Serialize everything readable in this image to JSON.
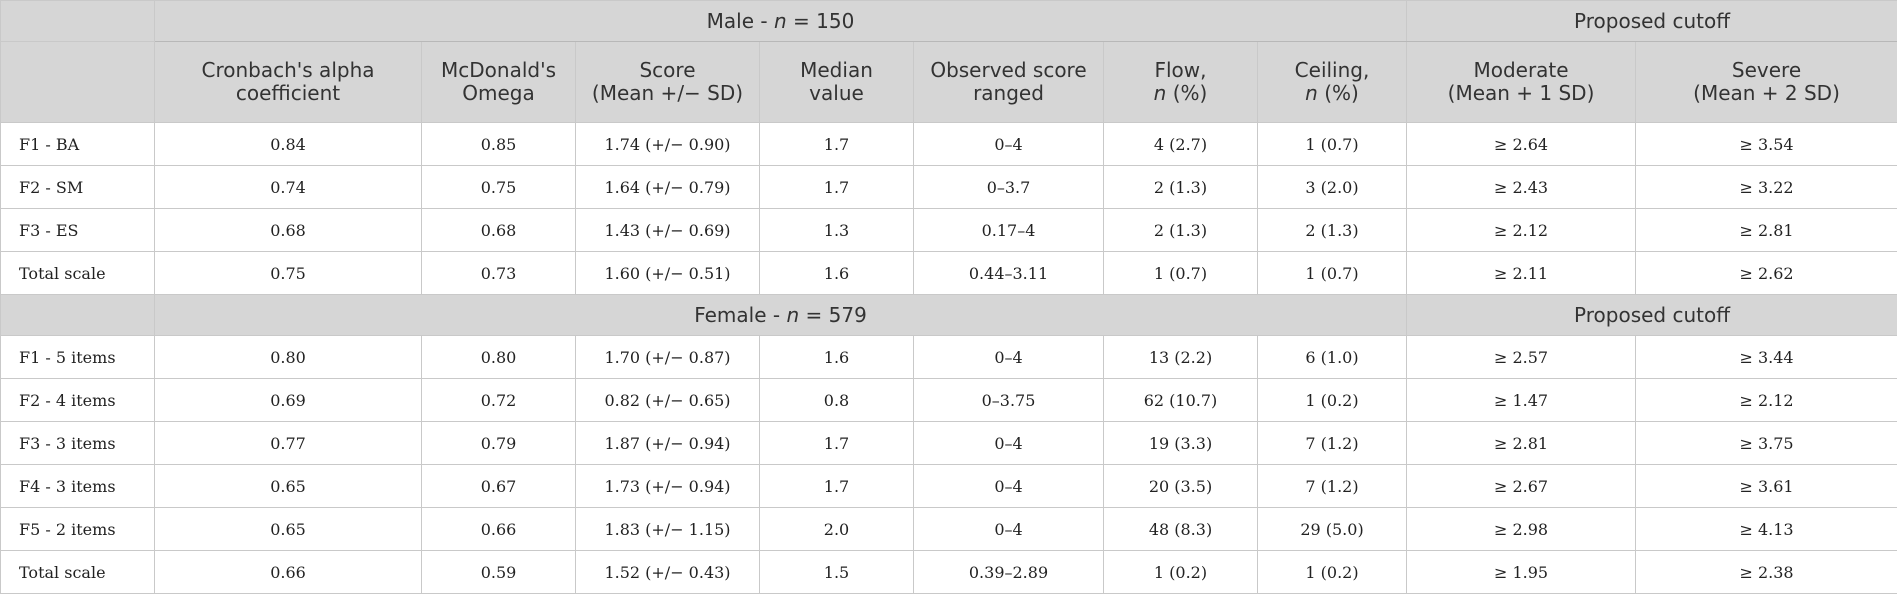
{
  "male_group": {
    "prefix": "Male - ",
    "n_symbol": "n",
    "n_text": " = 150",
    "cutoff": "Proposed cutoff"
  },
  "columns": [
    {
      "l1": "Cronbach's alpha",
      "l2": "coefficient",
      "l2_pre": "",
      "l2_post": ""
    },
    {
      "l1": "McDonald's",
      "l2": "Omega"
    },
    {
      "l1": "Score",
      "l2": "(Mean +/− SD)"
    },
    {
      "l1": "Median",
      "l2": "value"
    },
    {
      "l1": "Observed score ranged"
    },
    {
      "l1": "Flow,",
      "l2_ital": "n",
      "l2_rest": " (%)"
    },
    {
      "l1": "Ceiling,",
      "l2_ital": "n",
      "l2_rest": " (%)"
    },
    {
      "l1": "Moderate",
      "l2": "(Mean + 1 SD)"
    },
    {
      "l1": "Severe",
      "l2": "(Mean + 2 SD)"
    }
  ],
  "male_rows": [
    {
      "label": "F1 - BA",
      "cells": [
        "0.84",
        "0.85",
        "1.74 (+/− 0.90)",
        "1.7",
        "0–4",
        "4 (2.7)",
        "1 (0.7)",
        "≥ 2.64",
        "≥ 3.54"
      ]
    },
    {
      "label": "F2 - SM",
      "cells": [
        "0.74",
        "0.75",
        "1.64 (+/− 0.79)",
        "1.7",
        "0–3.7",
        "2 (1.3)",
        "3 (2.0)",
        "≥ 2.43",
        "≥ 3.22"
      ]
    },
    {
      "label": "F3 - ES",
      "cells": [
        "0.68",
        "0.68",
        "1.43 (+/− 0.69)",
        "1.3",
        "0.17–4",
        "2 (1.3)",
        "2 (1.3)",
        "≥ 2.12",
        "≥ 2.81"
      ]
    },
    {
      "label": "Total scale",
      "cells": [
        "0.75",
        "0.73",
        "1.60 (+/− 0.51)",
        "1.6",
        "0.44–3.11",
        "1 (0.7)",
        "1 (0.7)",
        "≥ 2.11",
        "≥ 2.62"
      ]
    }
  ],
  "female_group": {
    "prefix": "Female - ",
    "n_symbol": "n",
    "n_text": " = 579",
    "cutoff": "Proposed cutoff"
  },
  "female_rows": [
    {
      "label": "F1 - 5 items",
      "cells": [
        "0.80",
        "0.80",
        "1.70 (+/− 0.87)",
        "1.6",
        "0–4",
        "13 (2.2)",
        "6 (1.0)",
        "≥ 2.57",
        "≥ 3.44"
      ]
    },
    {
      "label": "F2 - 4 items",
      "cells": [
        "0.69",
        "0.72",
        "0.82 (+/− 0.65)",
        "0.8",
        "0–3.75",
        "62 (10.7)",
        "1 (0.2)",
        "≥ 1.47",
        "≥ 2.12"
      ]
    },
    {
      "label": "F3 - 3 items",
      "cells": [
        "0.77",
        "0.79",
        "1.87 (+/− 0.94)",
        "1.7",
        "0–4",
        "19 (3.3)",
        "7 (1.2)",
        "≥ 2.81",
        "≥ 3.75"
      ]
    },
    {
      "label": "F4 - 3 items",
      "cells": [
        "0.65",
        "0.67",
        "1.73 (+/− 0.94)",
        "1.7",
        "0–4",
        "20 (3.5)",
        "7 (1.2)",
        "≥ 2.67",
        "≥ 3.61"
      ]
    },
    {
      "label": "F5 - 2 items",
      "cells": [
        "0.65",
        "0.66",
        "1.83 (+/− 1.15)",
        "2.0",
        "0–4",
        "48 (8.3)",
        "29 (5.0)",
        "≥ 2.98",
        "≥ 4.13"
      ]
    },
    {
      "label": "Total scale",
      "cells": [
        "0.66",
        "0.59",
        "1.52 (+/− 0.43)",
        "1.5",
        "0.39–2.89",
        "1 (0.2)",
        "1 (0.2)",
        "≥ 1.95",
        "≥ 2.38"
      ]
    }
  ]
}
